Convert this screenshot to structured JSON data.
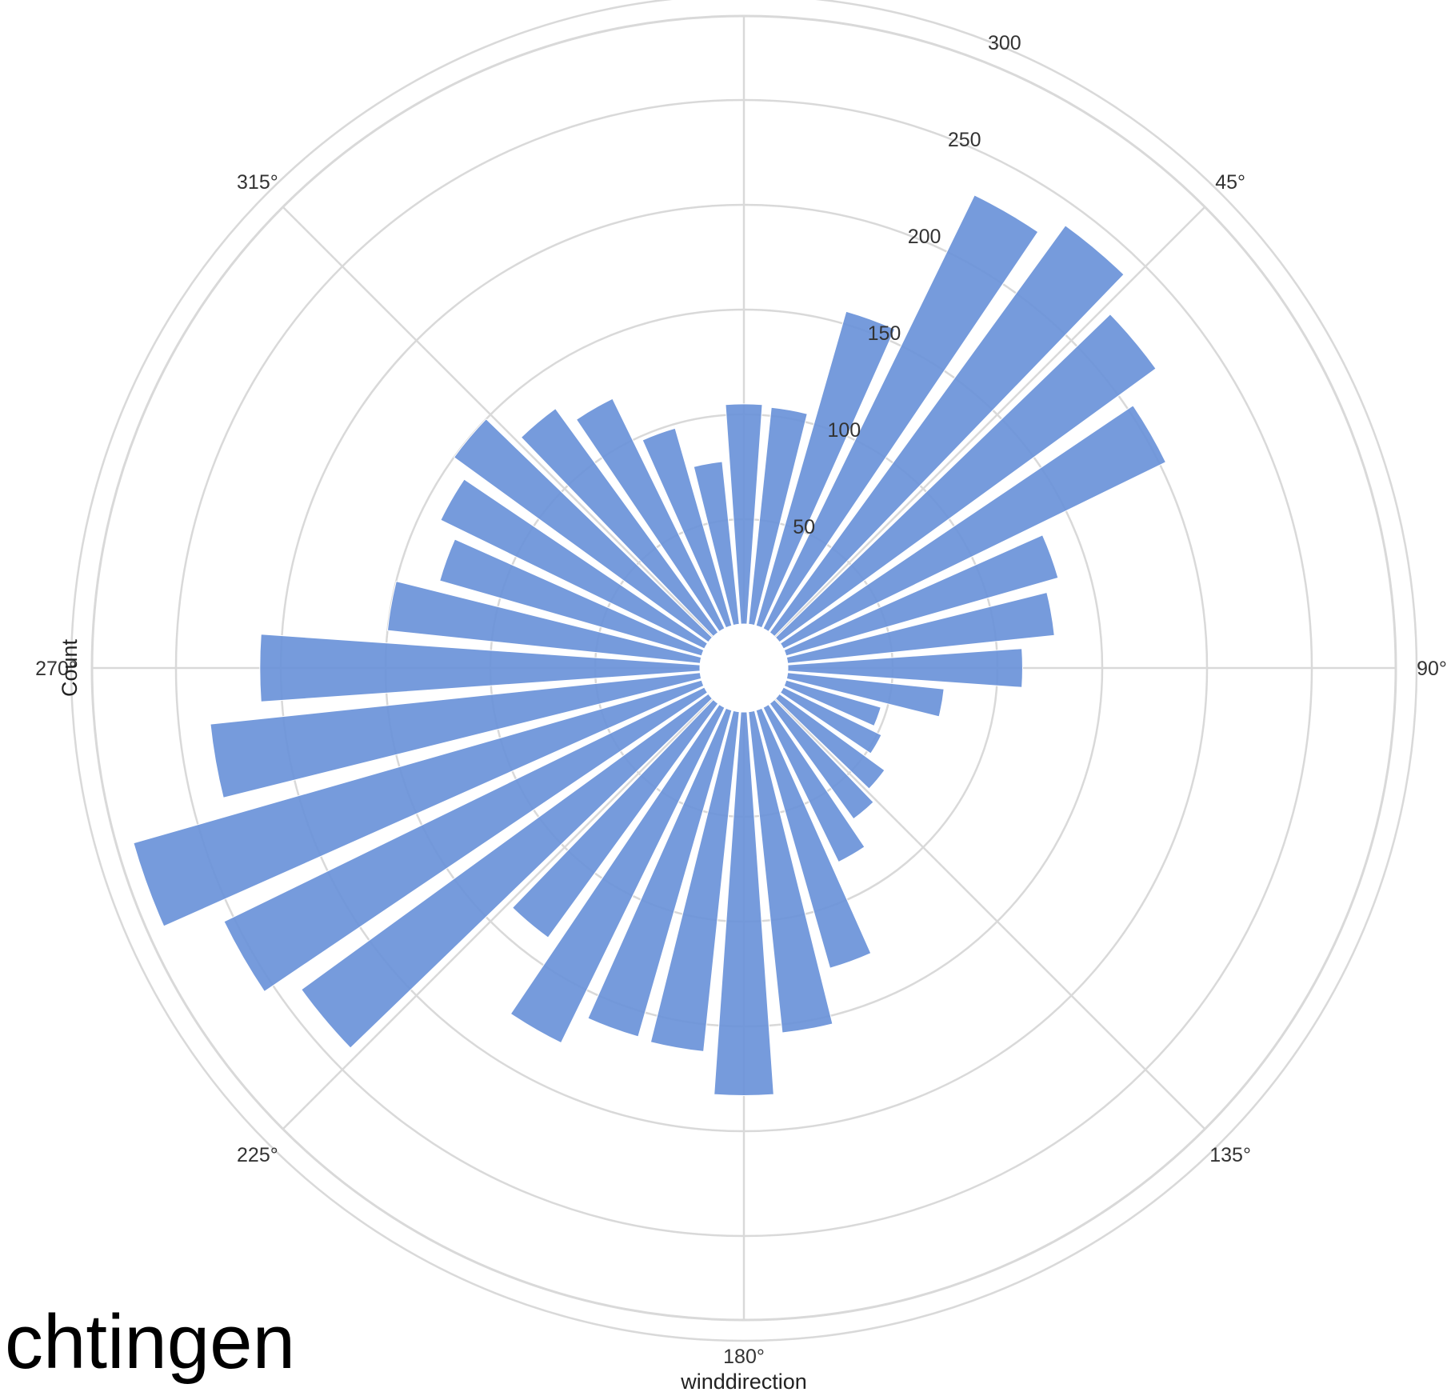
{
  "caption": "chtingen",
  "chart_data": {
    "type": "bar",
    "polar": true,
    "xlabel": "winddirection",
    "ylabel": "Count",
    "angle_ticks": [
      "45°",
      "90°",
      "135°",
      "180°",
      "225°",
      "270°",
      "315°"
    ],
    "radial_ticks": [
      "50",
      "100",
      "150",
      "200",
      "250",
      "300"
    ],
    "rlim": [
      0,
      300
    ],
    "grid": true,
    "bar_color": "#6a92d9",
    "categories": [
      0,
      10,
      20,
      30,
      40,
      50,
      60,
      70,
      80,
      90,
      100,
      110,
      120,
      130,
      140,
      150,
      160,
      170,
      180,
      190,
      200,
      210,
      220,
      230,
      240,
      250,
      260,
      270,
      280,
      290,
      300,
      310,
      320,
      330,
      340,
      350
    ],
    "values": [
      105,
      104,
      156,
      230,
      240,
      222,
      203,
      135,
      128,
      112,
      75,
      47,
      52,
      62,
      68,
      82,
      128,
      154,
      183,
      163,
      162,
      178,
      138,
      240,
      255,
      282,
      235,
      210,
      150,
      130,
      140,
      150,
      132,
      122,
      98,
      78
    ]
  }
}
